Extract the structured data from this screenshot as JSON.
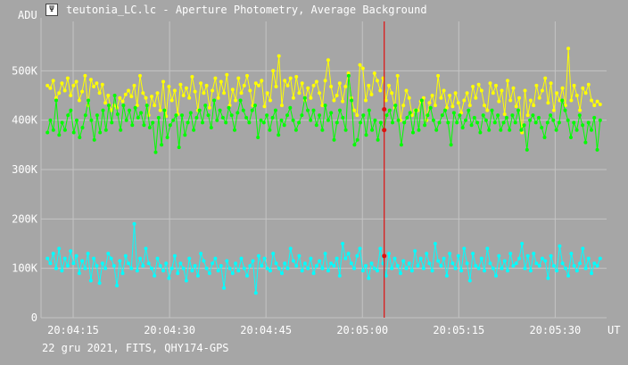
{
  "window": {
    "title": "teutonia_LC.lc - Aperture Photometry, Average Background",
    "icon": "lightcurve-app-icon"
  },
  "footer": {
    "text": "22 gru 2021, FITS, QHY174-GPS"
  },
  "colors": {
    "background": "#a6a6a6",
    "grid": "#c4c4c4",
    "axis_text": "#ffffff",
    "cursor": "#e01010",
    "series_yellow": "#ffff00",
    "series_green": "#00ff00",
    "series_cyan": "#00ffff",
    "marker": "#e01010"
  },
  "chart_data": {
    "type": "line",
    "ylabel": "ADU",
    "xlabel": "UT",
    "ylim": [
      0,
      600000
    ],
    "yticks": [
      {
        "value": 0,
        "label": "0"
      },
      {
        "value": 100000,
        "label": "100K"
      },
      {
        "value": 200000,
        "label": "200K"
      },
      {
        "value": 300000,
        "label": "300K"
      },
      {
        "value": 400000,
        "label": "400K"
      },
      {
        "value": 500000,
        "label": "500K"
      }
    ],
    "xlim": [
      "20:04:10",
      "20:05:38"
    ],
    "xticks": [
      "20:04:15",
      "20:04:30",
      "20:04:45",
      "20:05:00",
      "20:05:15",
      "20:05:30"
    ],
    "grid": true,
    "cursor_time": "20:05:03.4",
    "cursor_values": [
      422000,
      380000,
      125000
    ],
    "series": [
      {
        "color": "yellow",
        "values": [
          470000,
          465000,
          480000,
          445000,
          455000,
          475000,
          460000,
          485000,
          450000,
          470000,
          478000,
          440000,
          458000,
          490000,
          430000,
          482000,
          468000,
          475000,
          455000,
          472000,
          435000,
          450000,
          420000,
          430000,
          425000,
          445000,
          438000,
          452000,
          460000,
          448000,
          470000,
          430000,
          490000,
          455000,
          445000,
          410000,
          448000,
          430000,
          455000,
          420000,
          478000,
          408000,
          468000,
          440000,
          460000,
          412000,
          472000,
          450000,
          465000,
          445000,
          488000,
          458000,
          420000,
          475000,
          455000,
          470000,
          425000,
          460000,
          485000,
          445000,
          478000,
          455000,
          492000,
          430000,
          462000,
          440000,
          485000,
          455000,
          470000,
          490000,
          460000,
          430000,
          475000,
          470000,
          480000,
          428000,
          455000,
          440000,
          500000,
          468000,
          530000,
          430000,
          480000,
          470000,
          485000,
          445000,
          488000,
          455000,
          475000,
          440000,
          465000,
          445000,
          470000,
          478000,
          455000,
          430000,
          480000,
          522000,
          468000,
          440000,
          450000,
          475000,
          438000,
          468000,
          495000,
          445000,
          420000,
          410000,
          512000,
          505000,
          440000,
          470000,
          452000,
          495000,
          480000,
          460000,
          485000,
          440000,
          470000,
          455000,
          425000,
          490000,
          400000,
          430000,
          460000,
          445000,
          410000,
          420000,
          420000,
          438000,
          445000,
          400000,
          435000,
          450000,
          430000,
          490000,
          445000,
          460000,
          425000,
          450000,
          428000,
          455000,
          435000,
          415000,
          440000,
          455000,
          430000,
          468000,
          445000,
          472000,
          460000,
          430000,
          420000,
          475000,
          455000,
          470000,
          438000,
          460000,
          412000,
          480000,
          440000,
          465000,
          428000,
          445000,
          375000,
          460000,
          410000,
          440000,
          430000,
          470000,
          445000,
          460000,
          485000,
          435000,
          475000,
          420000,
          455000,
          440000,
          465000,
          430000,
          545000,
          440000,
          470000,
          450000,
          420000,
          465000,
          455000,
          472000,
          440000,
          430000,
          438000,
          432000
        ]
      },
      {
        "color": "green",
        "values": [
          375000,
          400000,
          380000,
          440000,
          370000,
          395000,
          380000,
          410000,
          420000,
          375000,
          400000,
          365000,
          385000,
          410000,
          440000,
          400000,
          360000,
          410000,
          375000,
          420000,
          380000,
          430000,
          395000,
          450000,
          412000,
          380000,
          430000,
          400000,
          420000,
          390000,
          425000,
          405000,
          415000,
          390000,
          430000,
          385000,
          395000,
          335000,
          405000,
          350000,
          420000,
          365000,
          390000,
          400000,
          410000,
          345000,
          410000,
          370000,
          395000,
          415000,
          380000,
          405000,
          420000,
          395000,
          430000,
          410000,
          385000,
          440000,
          400000,
          420000,
          405000,
          395000,
          425000,
          410000,
          380000,
          415000,
          440000,
          420000,
          405000,
          395000,
          420000,
          430000,
          365000,
          400000,
          395000,
          410000,
          380000,
          405000,
          420000,
          370000,
          400000,
          390000,
          410000,
          425000,
          400000,
          380000,
          395000,
          410000,
          445000,
          420000,
          400000,
          420000,
          390000,
          410000,
          380000,
          430000,
          400000,
          415000,
          360000,
          395000,
          420000,
          405000,
          380000,
          490000,
          440000,
          350000,
          360000,
          395000,
          410000,
          370000,
          420000,
          380000,
          400000,
          360000,
          395000,
          380000,
          410000,
          420000,
          395000,
          430000,
          400000,
          350000,
          395000,
          405000,
          415000,
          375000,
          420000,
          380000,
          440000,
          390000,
          410000,
          425000,
          400000,
          380000,
          395000,
          410000,
          420000,
          395000,
          350000,
          415000,
          395000,
          410000,
          385000,
          400000,
          420000,
          390000,
          405000,
          395000,
          375000,
          410000,
          400000,
          380000,
          420000,
          395000,
          410000,
          380000,
          395000,
          405000,
          380000,
          410000,
          395000,
          420000,
          380000,
          390000,
          340000,
          400000,
          410000,
          395000,
          405000,
          385000,
          365000,
          395000,
          410000,
          400000,
          380000,
          395000,
          440000,
          420000,
          400000,
          365000,
          395000,
          380000,
          410000,
          390000,
          355000,
          395000,
          380000,
          405000,
          340000,
          400000
        ]
      },
      {
        "color": "cyan",
        "values": [
          120000,
          110000,
          130000,
          100000,
          140000,
          95000,
          120000,
          105000,
          135000,
          110000,
          125000,
          90000,
          115000,
          100000,
          130000,
          75000,
          120000,
          105000,
          70000,
          110000,
          100000,
          130000,
          120000,
          105000,
          65000,
          115000,
          90000,
          125000,
          110000,
          100000,
          190000,
          95000,
          120000,
          105000,
          140000,
          110000,
          100000,
          85000,
          120000,
          105000,
          95000,
          110000,
          80000,
          100000,
          125000,
          90000,
          110000,
          100000,
          75000,
          120000,
          95000,
          105000,
          85000,
          130000,
          115000,
          100000,
          90000,
          110000,
          120000,
          95000,
          105000,
          60000,
          115000,
          100000,
          90000,
          110000,
          95000,
          120000,
          100000,
          85000,
          105000,
          115000,
          50000,
          125000,
          105000,
          120000,
          100000,
          95000,
          130000,
          110000,
          100000,
          90000,
          110000,
          100000,
          140000,
          115000,
          105000,
          125000,
          95000,
          110000,
          100000,
          120000,
          90000,
          105000,
          115000,
          100000,
          130000,
          95000,
          110000,
          105000,
          120000,
          85000,
          150000,
          120000,
          130000,
          110000,
          100000,
          125000,
          140000,
          95000,
          105000,
          80000,
          110000,
          100000,
          95000,
          140000,
          110000,
          85000,
          130000,
          100000,
          120000,
          105000,
          90000,
          115000,
          100000,
          110000,
          95000,
          135000,
          105000,
          120000,
          100000,
          130000,
          110000,
          95000,
          150000,
          115000,
          105000,
          120000,
          85000,
          130000,
          110000,
          100000,
          125000,
          95000,
          140000,
          110000,
          75000,
          130000,
          105000,
          100000,
          120000,
          95000,
          140000,
          110000,
          100000,
          85000,
          125000,
          100000,
          115000,
          95000,
          130000,
          105000,
          110000,
          120000,
          150000,
          100000,
          125000,
          95000,
          130000,
          110000,
          105000,
          120000,
          115000,
          80000,
          125000,
          105000,
          95000,
          145000,
          110000,
          100000,
          85000,
          130000,
          105000,
          95000,
          110000,
          140000,
          100000,
          120000,
          90000,
          110000,
          105000,
          120000
        ]
      }
    ]
  }
}
